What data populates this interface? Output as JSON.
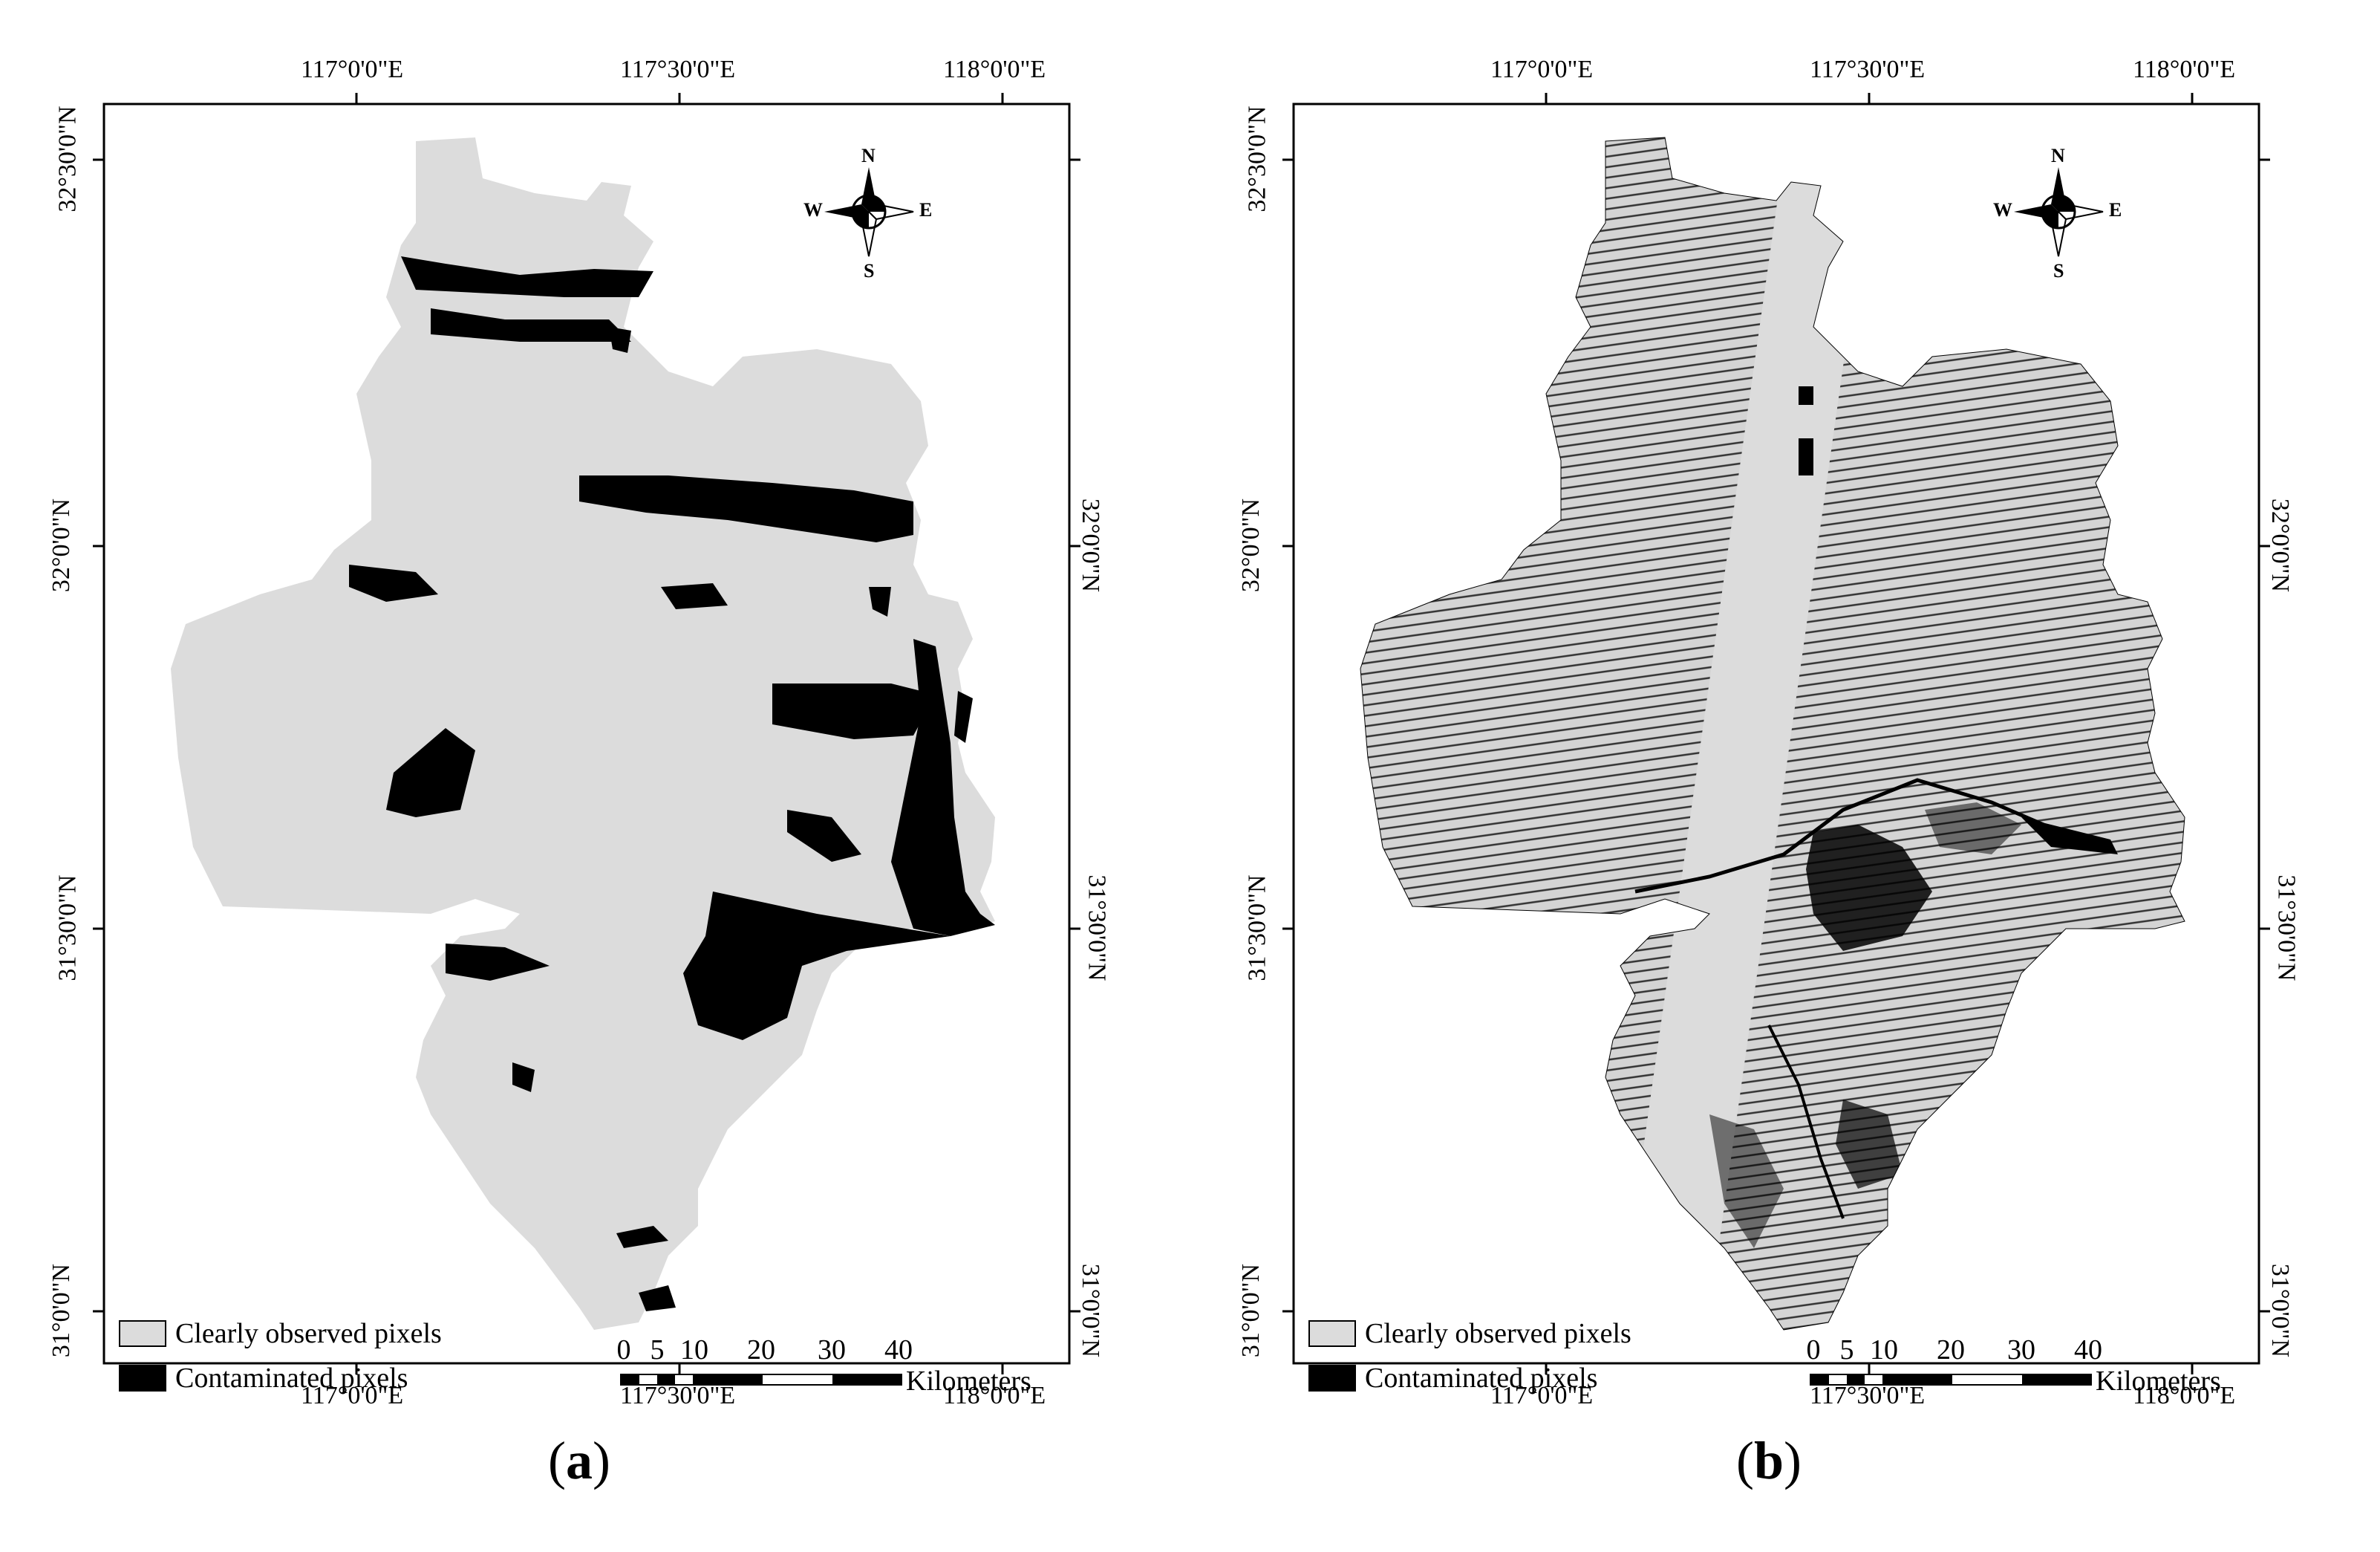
{
  "panels": [
    {
      "id": "a",
      "label": "a",
      "legend": [
        {
          "label": "Clearly observed pixels",
          "color": "#dcdcdc"
        },
        {
          "label": "Contaminated pixels",
          "color": "#000000"
        }
      ],
      "scale": {
        "ticks": [
          "0",
          "5",
          "10",
          "20",
          "30",
          "40"
        ],
        "unit": "Kilometers"
      },
      "compass": {
        "n": "N",
        "s": "S",
        "e": "E",
        "w": "W"
      },
      "top_lon": [
        "117°0'0\"E",
        "117°30'0\"E",
        "118°0'0\"E"
      ],
      "bottom_lon": [
        "117°0'0\"E",
        "117°30'0\"E",
        "118°0'0\"E"
      ],
      "left_lat": [
        "32°30'0\"N",
        "32°0'0\"N",
        "31°30'0\"N",
        "31°0'0\"N"
      ],
      "right_lat": [
        "32°0'0\"N",
        "31°30'0\"N",
        "31°0'0\"N"
      ]
    },
    {
      "id": "b",
      "label": "b",
      "legend": [
        {
          "label": "Clearly observed pixels",
          "color": "#dcdcdc"
        },
        {
          "label": "Contaminated pixels",
          "color": "#000000"
        }
      ],
      "scale": {
        "ticks": [
          "0",
          "5",
          "10",
          "20",
          "30",
          "40"
        ],
        "unit": "Kilometers"
      },
      "compass": {
        "n": "N",
        "s": "S",
        "e": "E",
        "w": "W"
      },
      "top_lon": [
        "117°0'0\"E",
        "117°30'0\"E",
        "118°0'0\"E"
      ],
      "bottom_lon": [
        "117°0'0\"E",
        "117°30'0\"E",
        "118°0'0\"E"
      ],
      "left_lat": [
        "32°30'0\"N",
        "32°0'0\"N",
        "31°30'0\"N",
        "31°0'0\"N"
      ],
      "right_lat": [
        "32°0'0\"N",
        "31°30'0\"N",
        "31°0'0\"N"
      ]
    }
  ],
  "colors": {
    "clear": "#dcdcdc",
    "contaminated": "#000000",
    "frame": "#000000"
  }
}
